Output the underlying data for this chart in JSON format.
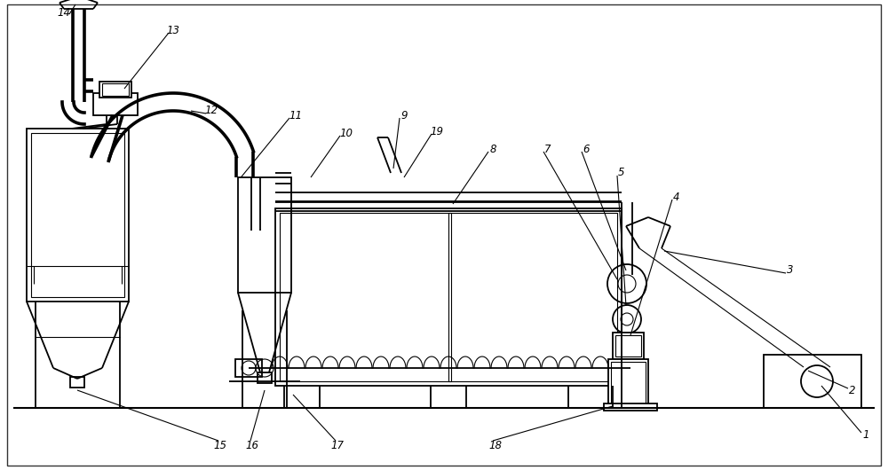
{
  "bg_color": "#ffffff",
  "lc": "#000000",
  "lw": 1.3,
  "tlw": 0.8,
  "figsize": [
    10.0,
    5.3
  ],
  "dpi": 100
}
